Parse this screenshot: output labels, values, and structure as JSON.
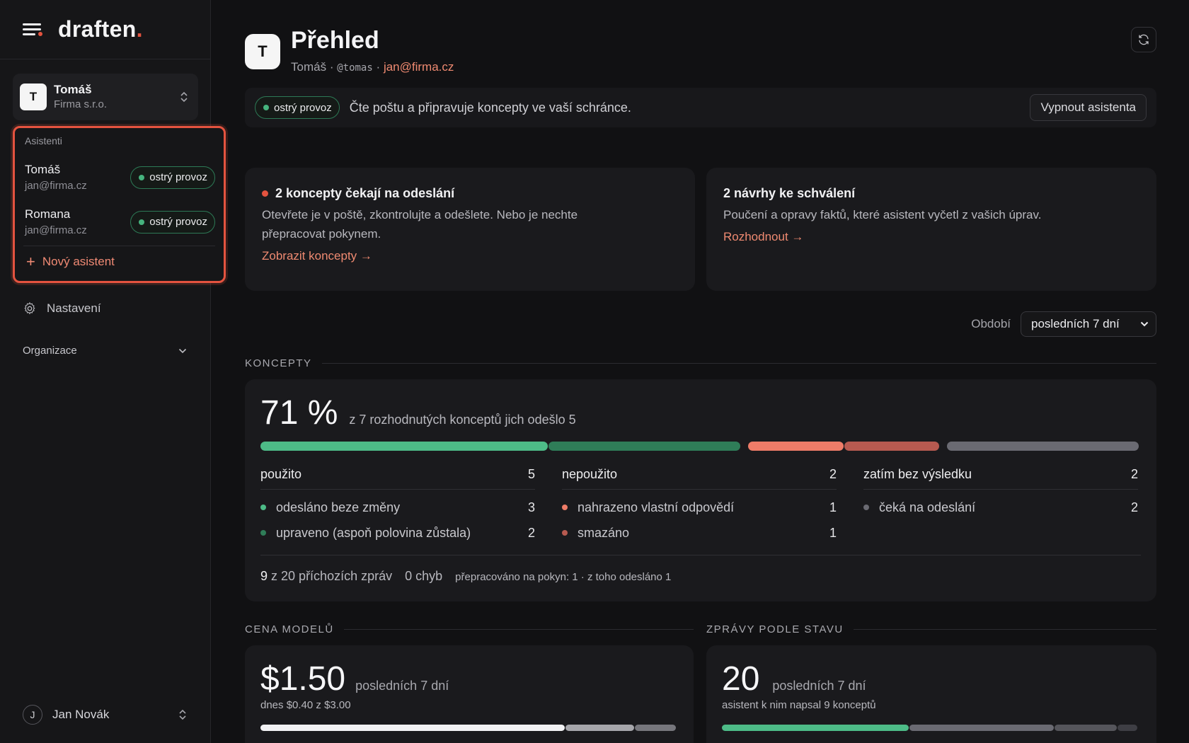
{
  "sidebar": {
    "logo": "draften",
    "logo_dot": ".",
    "org": {
      "avatar": "T",
      "name": "Tomáš",
      "company": "Firma s.r.o."
    },
    "dropdown": {
      "header": "Asistenti",
      "assistants": [
        {
          "name": "Tomáš",
          "email": "jan@firma.cz",
          "status": "ostrý provoz"
        },
        {
          "name": "Romana",
          "email": "jan@firma.cz",
          "status": "ostrý provoz"
        }
      ],
      "new_label": "Nový asistent"
    },
    "settings_label": "Nastavení",
    "organization_label": "Organizace",
    "user": {
      "avatar": "J",
      "name": "Jan Novák"
    }
  },
  "header": {
    "avatar": "T",
    "title": "Přehled",
    "name": "Tomáš",
    "sep1": "·",
    "handle": "@tomas",
    "sep2": "·",
    "email": "jan@firma.cz"
  },
  "status_bar": {
    "status": "ostrý provoz",
    "text": "Čte poštu a připravuje koncepty ve vaší schránce.",
    "button": "Vypnout asistenta"
  },
  "cards": {
    "drafts": {
      "title": "2 koncepty čekají na odeslání",
      "text": "Otevřete je v poště, zkontrolujte a odešlete. Nebo je nechte přepracovat pokynem.",
      "link": "Zobrazit koncepty →"
    },
    "proposals": {
      "title": "2 návrhy ke schválení",
      "text": "Poučení a opravy faktů, které asistent vyčetl z vašich úprav.",
      "link": "Rozhodnout →"
    }
  },
  "period": {
    "label": "Období",
    "value": "posledních 7 dní"
  },
  "koncepty": {
    "section": "KONCEPTY",
    "percent": "71 %",
    "summary": "z 7 rozhodnutých konceptů jich odešlo 5",
    "bar": [
      {
        "name": "odesláno beze změny",
        "value": 3,
        "color": "#4dbb87"
      },
      {
        "name": "upraveno",
        "value": 2,
        "color": "#2f7d58"
      },
      {
        "name": "nahrazeno",
        "value": 1,
        "color": "#ee7c68"
      },
      {
        "name": "smazáno",
        "value": 1,
        "color": "#b75a50"
      },
      {
        "name": "čeká",
        "value": 2,
        "color": "#6a6a72"
      }
    ],
    "columns": [
      {
        "title": "použito",
        "total": "5",
        "items": [
          {
            "label": "odesláno beze změny",
            "value": "3",
            "color": "#4dbb87"
          },
          {
            "label": "upraveno (aspoň polovina zůstala)",
            "value": "2",
            "color": "#2f7d58"
          }
        ]
      },
      {
        "title": "nepoužito",
        "total": "2",
        "items": [
          {
            "label": "nahrazeno vlastní odpovědí",
            "value": "1",
            "color": "#ee7c68"
          },
          {
            "label": "smazáno",
            "value": "1",
            "color": "#b75a50"
          }
        ]
      },
      {
        "title": "zatím bez výsledku",
        "total": "2",
        "items": [
          {
            "label": "čeká na odeslání",
            "value": "2",
            "color": "#6a6a72"
          }
        ]
      }
    ],
    "footer": {
      "incoming_num": "9",
      "incoming_text": "z 20 příchozích zpráv",
      "errors": "0 chyb",
      "reworked": "přepracováno na pokyn: 1 · z toho odesláno 1"
    }
  },
  "cena": {
    "section": "CENA MODELŮ",
    "amount": "$1.50",
    "period": "posledních 7 dní",
    "detail": "dnes $0.40 z $3.00",
    "bar": [
      {
        "value": 1.1,
        "color": "#f2f2f4"
      },
      {
        "value": 0.25,
        "color": "#a6a6ab"
      },
      {
        "value": 0.15,
        "color": "#76767c"
      }
    ]
  },
  "zpravy": {
    "section": "ZPRÁVY PODLE STAVU",
    "count": "20",
    "period": "posledních 7 dní",
    "detail": "asistent k nim napsal 9 konceptů",
    "bar": [
      {
        "value": 9,
        "color": "#4dbb87"
      },
      {
        "value": 7,
        "color": "#6a6a72"
      },
      {
        "value": 3,
        "color": "#55555b"
      },
      {
        "value": 1,
        "color": "#3e3e44"
      }
    ]
  }
}
